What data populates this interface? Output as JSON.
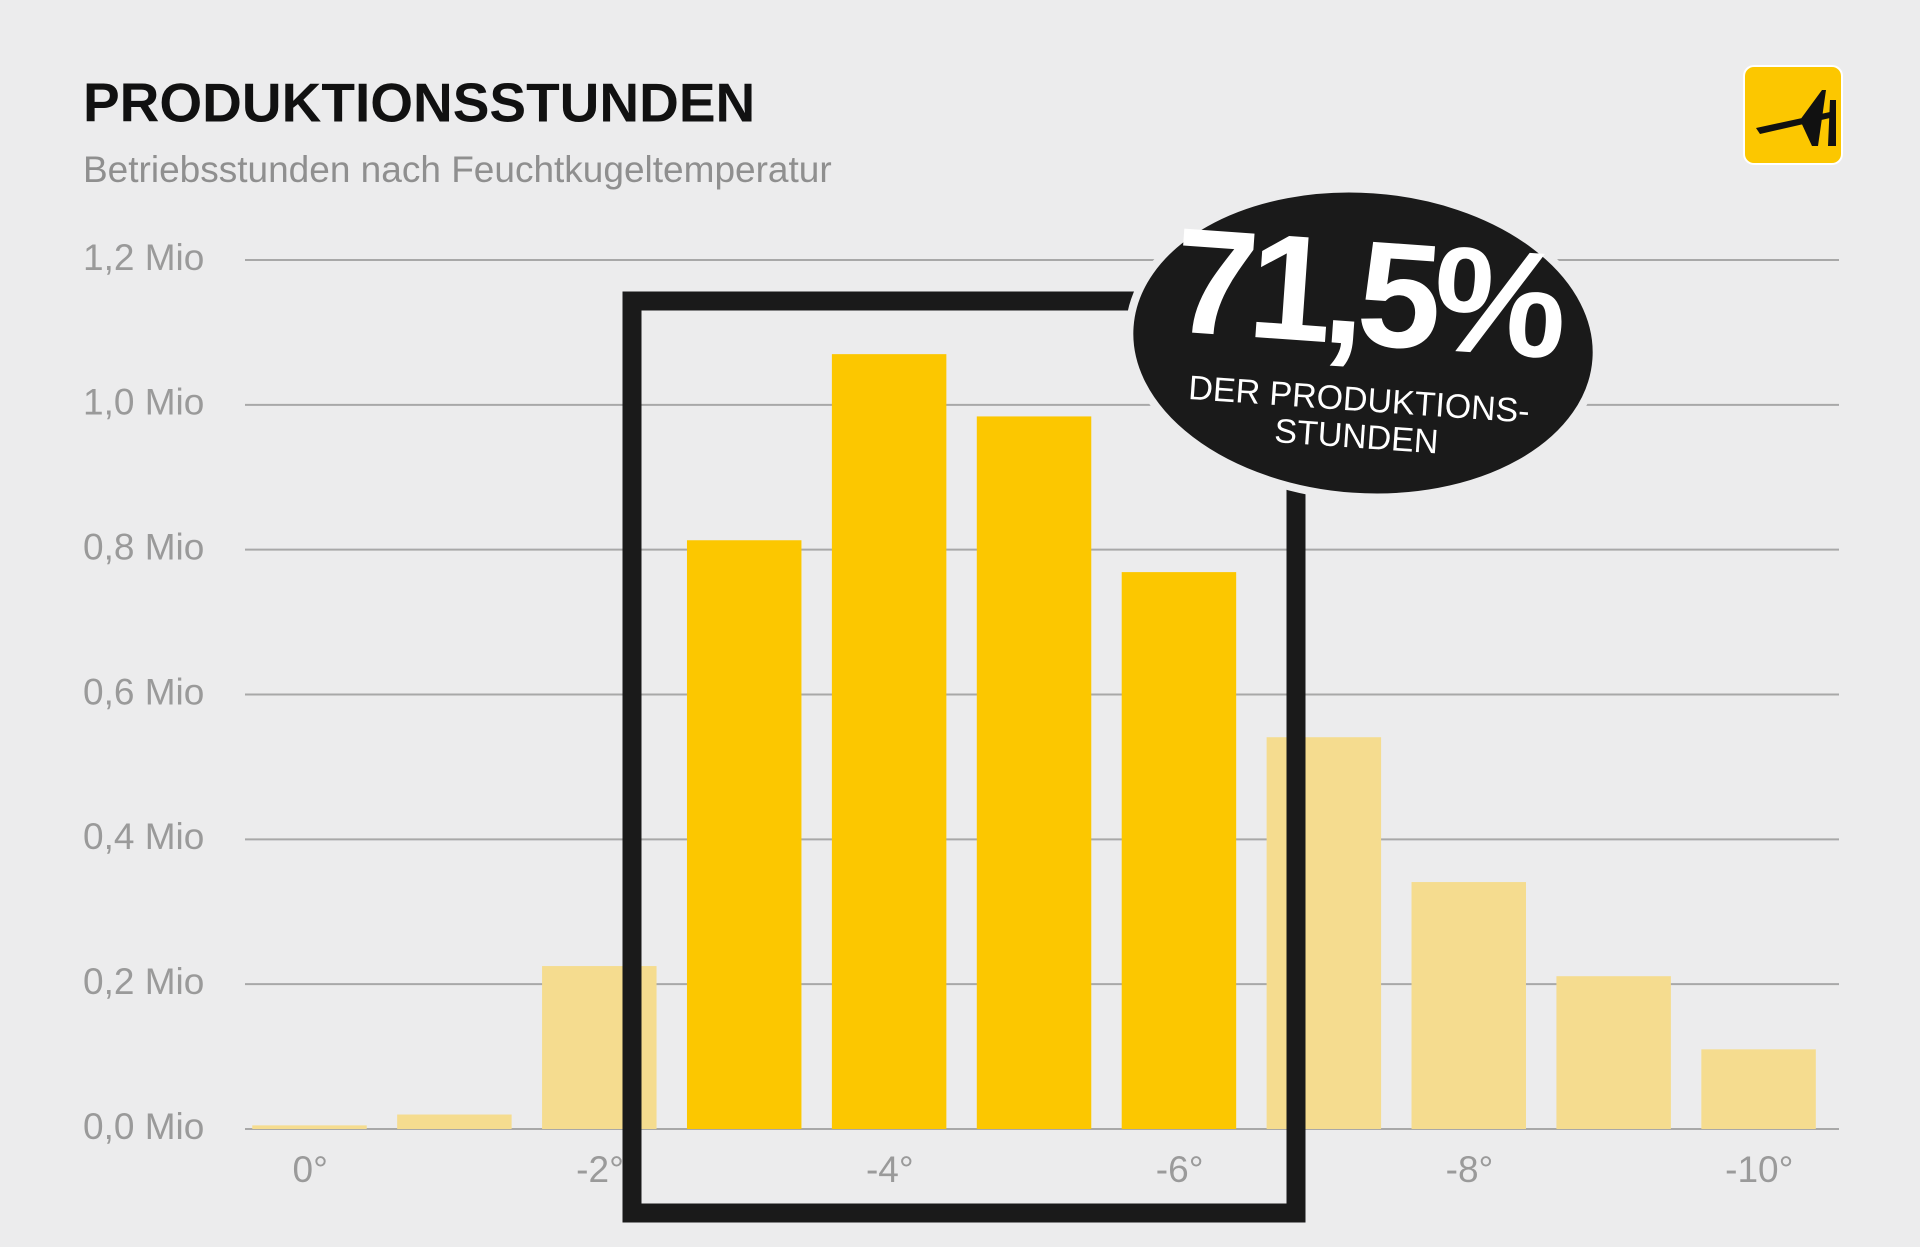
{
  "chart_data": {
    "type": "bar",
    "title": "PRODUKTIONSSTUNDEN",
    "subtitle": "Betriebsstunden nach Feuchtkugeltemperatur",
    "categories": [
      "0°",
      null,
      "-2°",
      null,
      "-4°",
      null,
      "-6°",
      null,
      "-8°",
      null,
      "-10°"
    ],
    "values": [
      0.005,
      0.02,
      0.225,
      0.813,
      1.07,
      0.984,
      0.769,
      0.541,
      0.341,
      0.211,
      0.11
    ],
    "colors": [
      "#f5dc8f",
      "#f5dc8f",
      "#f5dc8f",
      "#fcc700",
      "#fcc700",
      "#fcc700",
      "#fcc700",
      "#f5dc8f",
      "#f5dc8f",
      "#f5dc8f",
      "#f5dc8f"
    ],
    "ylim": [
      0,
      1.2
    ],
    "yticks": [
      {
        "value": 0,
        "label": "0,0 Mio"
      },
      {
        "value": 0.2,
        "label": "0,2 Mio"
      },
      {
        "value": 0.4,
        "label": "0,4 Mio"
      },
      {
        "value": 0.6,
        "label": "0,6 Mio"
      },
      {
        "value": 0.8,
        "label": "0,8 Mio"
      },
      {
        "value": 1.0,
        "label": "1,0 Mio"
      },
      {
        "value": 1.2,
        "label": "1,2 Mio"
      }
    ],
    "grid": true,
    "annotation": {
      "value": "71,5%",
      "label": [
        "DER PRODUKTIONS-",
        "STUNDEN"
      ]
    }
  }
}
